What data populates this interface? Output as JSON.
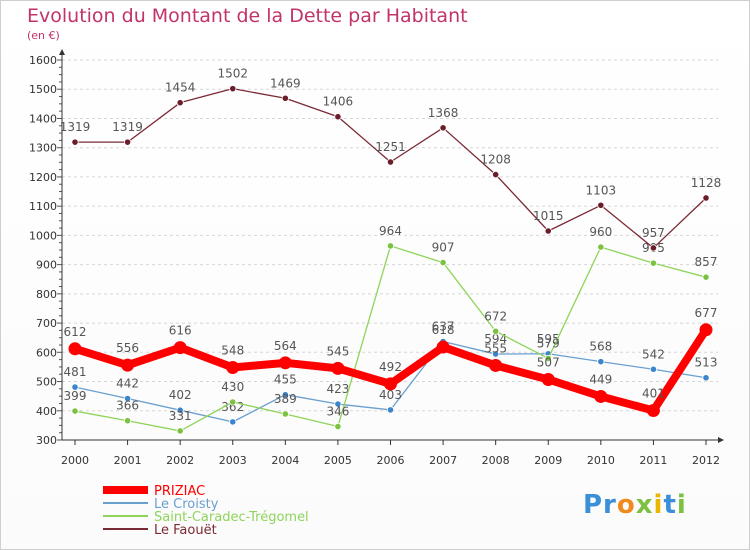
{
  "title": "Evolution du Montant de la Dette par Habitant",
  "subtitle": "(en €)",
  "logo": "Proxiti",
  "chart_data": {
    "type": "line",
    "x": [
      "2000",
      "2001",
      "2002",
      "2003",
      "2004",
      "2005",
      "2006",
      "2007",
      "2008",
      "2009",
      "2010",
      "2011",
      "2012"
    ],
    "ylim": [
      300,
      1600
    ],
    "yticks": [
      300,
      400,
      500,
      600,
      700,
      800,
      900,
      1000,
      1100,
      1200,
      1300,
      1400,
      1500,
      1600
    ],
    "grid": "horizontal dashed",
    "legend_position": "bottom-left",
    "series": [
      {
        "name": "Le Croisty",
        "color": "#6a9fce",
        "marker": "#3a85cc",
        "values": [
          481,
          442,
          402,
          362,
          455,
          423,
          403,
          637,
          594,
          595,
          568,
          542,
          513
        ],
        "labels": [
          "481",
          "442",
          "402",
          "362",
          "455",
          "423",
          "403",
          "637",
          "594",
          "595",
          "568",
          "542",
          "513"
        ]
      },
      {
        "name": "Saint-Caradec-Trégomel",
        "color": "#8fd45a",
        "marker": "#7cc242",
        "values": [
          399,
          366,
          331,
          430,
          389,
          346,
          964,
          907,
          672,
          579,
          960,
          905,
          857
        ],
        "labels": [
          "399",
          "366",
          "331",
          "430",
          "389",
          "346",
          "964",
          "907",
          "672",
          "579",
          "960",
          "905",
          "857"
        ]
      },
      {
        "name": "Le Faouët",
        "color": "#7a2a35",
        "marker": "#6b1e2a",
        "values": [
          1319,
          1319,
          1454,
          1502,
          1469,
          1406,
          1251,
          1368,
          1208,
          1015,
          1103,
          957,
          1128
        ],
        "labels": [
          "1319",
          "1319",
          "1454",
          "1502",
          "1469",
          "1406",
          "1251",
          "1368",
          "1208",
          "1015",
          "1103",
          "957",
          "1128"
        ]
      },
      {
        "name": "PRIZIAC",
        "color": "#ff0000",
        "marker": "#ff0000",
        "values": [
          612,
          556,
          616,
          548,
          564,
          545,
          492,
          618,
          555,
          507,
          449,
          401,
          677
        ],
        "labels": [
          "612",
          "556",
          "616",
          "548",
          "564",
          "545",
          "492",
          "618",
          "555",
          "507",
          "449",
          "401",
          "677"
        ]
      }
    ],
    "legend_order": [
      "PRIZIAC",
      "Le Croisty",
      "Saint-Caradec-Trégomel",
      "Le Faouët"
    ]
  }
}
